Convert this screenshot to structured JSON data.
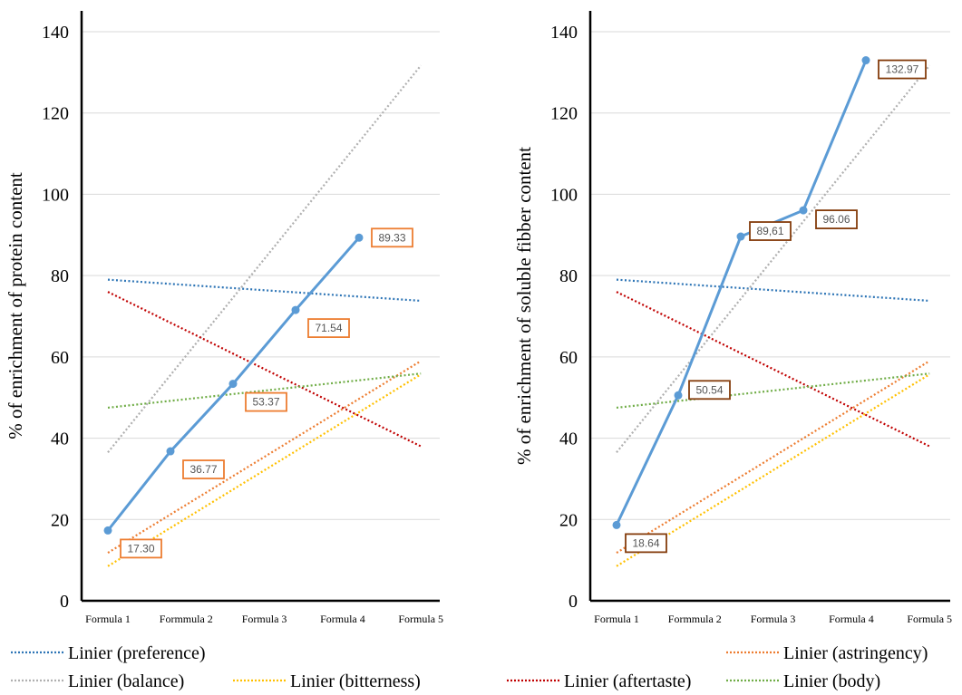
{
  "colors": {
    "main_line": "#5b9bd5",
    "preference": "#2e75b6",
    "balance": "#b0b0b0",
    "bitterness": "#ffc000",
    "astringency": "#ed7d31",
    "aftertaste": "#c00000",
    "body": "#70ad47",
    "label_box_left": "#ed7d31",
    "label_box_right": "#843c0c"
  },
  "legend": {
    "preference": "Linier (preference)",
    "balance": "Linier (balance)",
    "bitterness": "Linier (bitterness)",
    "astringency": "Linier (astringency)",
    "aftertaste": "Linier (aftertaste)",
    "body": "Linier (body)"
  },
  "chart_data": [
    {
      "type": "line",
      "ylabel": "% of enrichment of protein content",
      "xlabel": "",
      "ylim": [
        0,
        140
      ],
      "yticks": [
        0,
        20,
        40,
        60,
        80,
        100,
        120,
        140
      ],
      "grid": "horizontal",
      "categories": [
        "Formula 1",
        "Formmula 2",
        "Formula 3",
        "Formula 4",
        "Formula 5"
      ],
      "series": [
        {
          "key": "main",
          "style": "solid-markers",
          "values": [
            17.3,
            36.77,
            53.37,
            71.54,
            89.33
          ],
          "labels": [
            "17.30",
            "36.77",
            "53.37",
            "71.54",
            "89.33"
          ]
        },
        {
          "key": "preference",
          "style": "trendline",
          "values": [
            79,
            77.7,
            76.4,
            75.1,
            73.8
          ]
        },
        {
          "key": "balance",
          "style": "trendline",
          "values": [
            36.5,
            60.3,
            84.1,
            107.9,
            131.7
          ]
        },
        {
          "key": "bitterness",
          "style": "trendline",
          "values": [
            8.5,
            20.3,
            32.1,
            43.9,
            55.7
          ]
        },
        {
          "key": "astringency",
          "style": "trendline",
          "values": [
            11.8,
            23.6,
            35.4,
            47.2,
            59
          ]
        },
        {
          "key": "aftertaste",
          "style": "trendline",
          "values": [
            76,
            66.5,
            57,
            47.5,
            38
          ]
        },
        {
          "key": "body",
          "style": "trendline",
          "values": [
            47.5,
            49.6,
            51.7,
            53.8,
            55.9
          ]
        }
      ]
    },
    {
      "type": "line",
      "ylabel": "% of enrichment of soluble fibber content",
      "xlabel": "",
      "ylim": [
        0,
        140
      ],
      "yticks": [
        0,
        20,
        40,
        60,
        80,
        100,
        120,
        140
      ],
      "grid": "horizontal",
      "categories": [
        "Formula 1",
        "Formmula 2",
        "Formula 3",
        "Formula 4",
        "Formula 5"
      ],
      "series": [
        {
          "key": "main",
          "style": "solid-markers",
          "values": [
            18.64,
            50.54,
            89.61,
            96.06,
            132.97
          ],
          "labels": [
            "18.64",
            "50.54",
            "89,61",
            "96.06",
            "132.97"
          ]
        },
        {
          "key": "preference",
          "style": "trendline",
          "values": [
            79,
            77.7,
            76.4,
            75.1,
            73.8
          ]
        },
        {
          "key": "balance",
          "style": "trendline",
          "values": [
            36.5,
            60.3,
            84.1,
            107.9,
            131.7
          ]
        },
        {
          "key": "bitterness",
          "style": "trendline",
          "values": [
            8.5,
            20.3,
            32.1,
            43.9,
            55.7
          ]
        },
        {
          "key": "astringency",
          "style": "trendline",
          "values": [
            11.8,
            23.6,
            35.4,
            47.2,
            59
          ]
        },
        {
          "key": "aftertaste",
          "style": "trendline",
          "values": [
            76,
            66.5,
            57,
            47.5,
            38
          ]
        },
        {
          "key": "body",
          "style": "trendline",
          "values": [
            47.5,
            49.6,
            51.7,
            53.8,
            55.9
          ]
        }
      ]
    }
  ]
}
